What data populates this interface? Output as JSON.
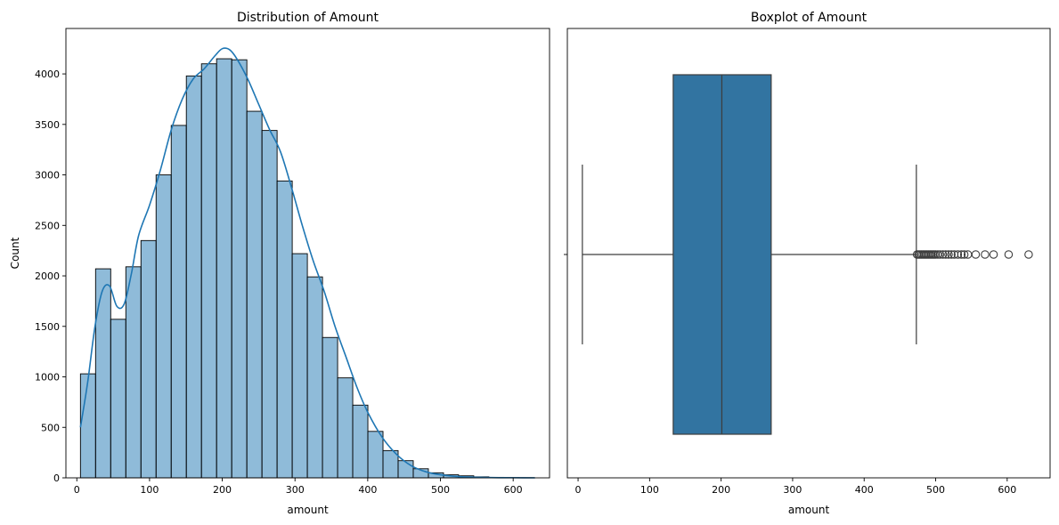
{
  "chart_data": [
    {
      "type": "bar",
      "title": "Distribution of Amount",
      "xlabel": "amount",
      "ylabel": "Count",
      "xlim": [
        -15,
        650
      ],
      "ylim": [
        0,
        4450
      ],
      "xticks": [
        0,
        100,
        200,
        300,
        400,
        500,
        600
      ],
      "yticks": [
        0,
        500,
        1000,
        1500,
        2000,
        2500,
        3000,
        3500,
        4000
      ],
      "grid": false,
      "bar_color": "#1f77b4",
      "bar_alpha": 0.5,
      "bin_start": 5,
      "bin_width": 20.8,
      "values": [
        1030,
        2070,
        1570,
        2090,
        2350,
        3000,
        3490,
        3980,
        4100,
        4150,
        4140,
        3630,
        3440,
        2940,
        2220,
        1990,
        1390,
        990,
        720,
        460,
        270,
        170,
        90,
        50,
        30,
        20,
        10,
        5,
        3,
        2
      ],
      "kde": {
        "color": "#1f77b4",
        "x": [
          5,
          15,
          25,
          35,
          45,
          55,
          65,
          75,
          85,
          100,
          115,
          130,
          145,
          160,
          175,
          190,
          200,
          210,
          220,
          235,
          250,
          265,
          280,
          295,
          310,
          325,
          340,
          355,
          370,
          385,
          400,
          420,
          440,
          460,
          480,
          500,
          520,
          540,
          560,
          580,
          600,
          630
        ],
        "y": [
          500,
          950,
          1500,
          1850,
          1900,
          1700,
          1720,
          2020,
          2400,
          2700,
          3050,
          3450,
          3750,
          3950,
          4050,
          4180,
          4250,
          4240,
          4150,
          3950,
          3700,
          3450,
          3230,
          2880,
          2500,
          2150,
          1850,
          1500,
          1200,
          900,
          650,
          400,
          230,
          120,
          60,
          30,
          15,
          7,
          4,
          2,
          1,
          0
        ]
      }
    },
    {
      "type": "box",
      "title": "Boxplot of Amount",
      "xlabel": "amount",
      "xlim": [
        -15,
        660
      ],
      "xticks": [
        0,
        100,
        200,
        300,
        400,
        500,
        600
      ],
      "box_color": "#3274a1",
      "line_color": "#3d3d3d",
      "whisker_low": 6,
      "q1": 133,
      "median": 201,
      "q3": 270,
      "whisker_high": 473,
      "outliers": [
        474,
        476,
        478,
        480,
        482,
        484,
        486,
        488,
        490,
        492,
        494,
        496,
        498,
        500,
        503,
        506,
        510,
        514,
        518,
        522,
        526,
        531,
        536,
        540,
        545,
        556,
        569,
        581,
        602,
        630
      ]
    }
  ]
}
